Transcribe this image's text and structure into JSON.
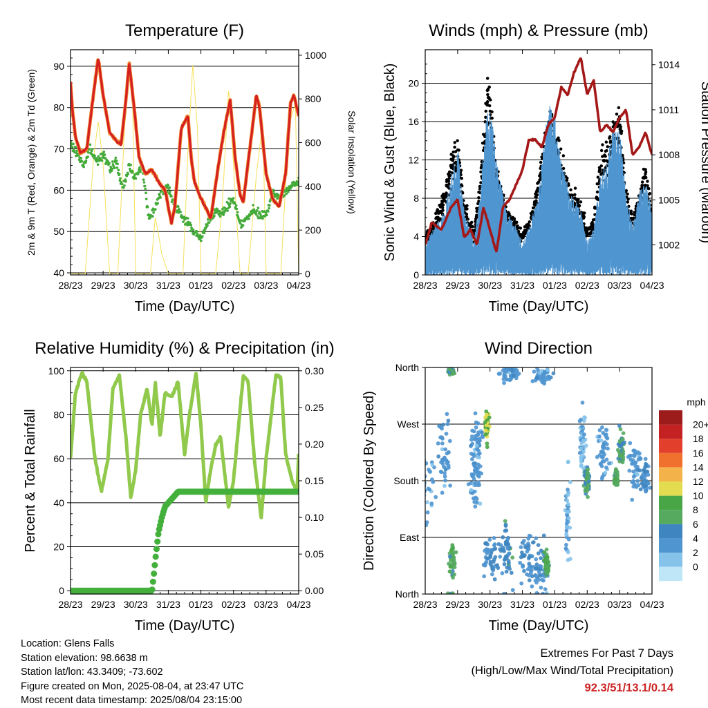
{
  "colors": {
    "temp": "#d42020",
    "temp9m": "#f08a30",
    "dew": "#44aa3a",
    "solar": "#f6e05a",
    "wind": "#4f95d0",
    "gust": "#000000",
    "pressure": "#a41818",
    "rh": "#90c94c",
    "rain": "#44b03c",
    "extreme": "#cc2222"
  },
  "common_x_ticks": [
    "28/23",
    "29/23",
    "30/23",
    "31/23",
    "01/23",
    "02/23",
    "03/23",
    "04/23"
  ],
  "chart_data": [
    {
      "id": "temperature",
      "type": "line",
      "title": "Temperature (F)",
      "xlabel": "Time (Day/UTC)",
      "ylabel": "2m & 9m T (Red, Orange) & 2m Td (Green)",
      "y2label": "Solar Insolation (Yellow)",
      "ylim": [
        39.5,
        94
      ],
      "yticks": [
        40,
        50,
        60,
        70,
        80,
        90
      ],
      "y2lim": [
        -5,
        1025
      ],
      "y2ticks": [
        0,
        200,
        400,
        600,
        800,
        1000
      ],
      "xlim": [
        0,
        7
      ],
      "grid": "horizontal",
      "series": [
        {
          "key": "t2m",
          "x": [
            0,
            0.05,
            0.15,
            0.3,
            0.5,
            0.7,
            0.85,
            1.0,
            1.2,
            1.4,
            1.55,
            1.7,
            1.8,
            1.95,
            2.1,
            2.3,
            2.5,
            2.7,
            2.9,
            3.1,
            3.2,
            3.4,
            3.6,
            3.7,
            3.8,
            4.0,
            4.2,
            4.3,
            4.5,
            4.7,
            4.9,
            5.05,
            5.2,
            5.3,
            5.5,
            5.7,
            5.8,
            6.0,
            6.2,
            6.4,
            6.6,
            6.75,
            6.85,
            7.0
          ],
          "y": [
            86,
            80,
            73,
            69,
            70,
            83,
            92,
            83,
            74,
            72,
            71,
            82,
            91,
            80,
            68,
            64,
            65,
            62,
            60,
            52,
            56,
            75,
            78,
            68,
            62,
            58,
            55,
            53,
            64,
            74,
            82,
            68,
            59,
            57,
            70,
            83,
            80,
            64,
            58,
            56,
            64,
            81,
            83,
            78
          ]
        },
        {
          "key": "dewpoint",
          "x": [
            0,
            0.2,
            0.4,
            0.6,
            0.8,
            1.0,
            1.2,
            1.4,
            1.6,
            1.8,
            2.0,
            2.2,
            2.4,
            2.6,
            2.8,
            3.0,
            3.2,
            3.4,
            3.6,
            3.8,
            4.0,
            4.2,
            4.4,
            4.6,
            4.8,
            5.0,
            5.2,
            5.4,
            5.6,
            5.8,
            6.0,
            6.2,
            6.4,
            6.6,
            6.8,
            7.0
          ],
          "y": [
            71,
            69,
            66,
            70,
            67,
            69,
            65,
            67,
            60,
            66,
            63,
            66,
            53,
            56,
            60,
            61,
            56,
            54,
            52,
            50,
            48,
            52,
            55,
            54,
            56,
            58,
            52,
            53,
            55,
            54,
            54,
            59,
            58,
            60,
            61,
            62
          ]
        },
        {
          "key": "solar",
          "x": [
            0.0,
            0.2,
            0.45,
            0.7,
            0.85,
            1.0,
            1.2,
            1.45,
            1.65,
            1.8,
            1.9,
            2.0,
            2.2,
            2.45,
            2.6,
            2.7,
            2.8,
            3.0,
            3.2,
            3.45,
            3.6,
            3.75,
            3.9,
            4.0,
            4.2,
            4.45,
            4.65,
            4.85,
            5.0,
            5.2,
            5.45,
            5.7,
            5.9,
            6.0,
            6.2,
            6.45,
            6.7,
            6.9,
            7.0
          ],
          "y": [
            0,
            0,
            0,
            520,
            700,
            500,
            0,
            0,
            650,
            950,
            820,
            0,
            0,
            0,
            260,
            180,
            90,
            0,
            0,
            0,
            550,
            960,
            650,
            0,
            0,
            0,
            300,
            850,
            500,
            0,
            0,
            450,
            700,
            0,
            0,
            0,
            680,
            780,
            0
          ]
        }
      ]
    },
    {
      "id": "winds",
      "type": "scatter",
      "title": "Winds (mph) & Pressure (mb)",
      "xlabel": "Time (Day/UTC)",
      "ylabel": "Sonic Wind & Gust (Blue, Black)",
      "y2label": "Station Pressure (Maroon)",
      "ylim": [
        0,
        23.5
      ],
      "yticks": [
        0,
        4,
        8,
        12,
        16,
        20
      ],
      "y2lim": [
        1000.0,
        1015.0
      ],
      "y2ticks": [
        1002,
        1005,
        1008,
        1011,
        1014
      ],
      "xlim": [
        0,
        7
      ],
      "grid": "horizontal",
      "series": [
        {
          "key": "wind_mean",
          "x": [
            0,
            0.3,
            0.6,
            0.8,
            1.0,
            1.2,
            1.5,
            1.7,
            1.85,
            2.0,
            2.2,
            2.5,
            2.8,
            3.0,
            3.2,
            3.5,
            3.7,
            3.85,
            4.0,
            4.2,
            4.5,
            4.8,
            5.0,
            5.2,
            5.4,
            5.6,
            5.8,
            6.0,
            6.2,
            6.4,
            6.6,
            6.8,
            7.0
          ],
          "y": [
            2,
            3,
            4,
            6,
            8,
            4,
            2,
            5,
            9,
            11,
            7,
            4,
            3,
            2,
            3,
            5,
            9,
            11,
            10,
            7,
            5,
            4,
            2,
            3,
            6,
            7,
            9,
            9,
            5,
            3,
            5,
            6,
            4
          ]
        },
        {
          "key": "gust",
          "x": [
            0,
            0.3,
            0.6,
            0.8,
            1.0,
            1.2,
            1.5,
            1.7,
            1.85,
            1.95,
            2.2,
            2.5,
            2.8,
            3.0,
            3.2,
            3.5,
            3.7,
            3.85,
            4.0,
            4.2,
            4.5,
            4.8,
            5.0,
            5.2,
            5.4,
            5.6,
            5.8,
            6.0,
            6.15,
            6.4,
            6.6,
            6.8,
            7.0
          ],
          "y": [
            4,
            5,
            8,
            11,
            13,
            7,
            4,
            9,
            16,
            19,
            10,
            6,
            5,
            4,
            5,
            9,
            13,
            15,
            13,
            11,
            8,
            7,
            4,
            5,
            11,
            12,
            14,
            16,
            9,
            5,
            8,
            10,
            6
          ]
        },
        {
          "key": "pressure",
          "x": [
            0,
            0.2,
            0.5,
            0.8,
            1.0,
            1.2,
            1.4,
            1.6,
            1.8,
            2.0,
            2.2,
            2.4,
            2.6,
            2.8,
            3.0,
            3.2,
            3.4,
            3.6,
            3.8,
            4.0,
            4.2,
            4.4,
            4.6,
            4.8,
            5.0,
            5.2,
            5.4,
            5.6,
            5.8,
            6.0,
            6.2,
            6.4,
            6.6,
            6.8,
            7.0
          ],
          "y": [
            1002.0,
            1003.5,
            1003.0,
            1004.5,
            1005.0,
            1002.5,
            1003.0,
            1002.0,
            1004.5,
            1003.0,
            1001.5,
            1004.5,
            1005.0,
            1006.0,
            1007.0,
            1009.0,
            1009.0,
            1008.5,
            1010.0,
            1010.5,
            1012.5,
            1012.0,
            1013.5,
            1014.5,
            1012.0,
            1013.0,
            1009.5,
            1010.0,
            1009.5,
            1010.5,
            1011.0,
            1008.0,
            1008.5,
            1009.5,
            1008.0
          ]
        }
      ]
    },
    {
      "id": "humidity",
      "type": "line",
      "title": "Relative Humidity (%) & Precipitation (in)",
      "xlabel": "Time (Day/UTC)",
      "ylabel": "Percent & Total Rainfall",
      "ylim": [
        -1.5,
        101.5
      ],
      "yticks": [
        0,
        20,
        40,
        60,
        80,
        100
      ],
      "y2lim": [
        -0.0045,
        0.3045
      ],
      "y2ticks": [
        "0.00",
        "0.05",
        "0.10",
        "0.15",
        "0.20",
        "0.25",
        "0.30"
      ],
      "xlim": [
        0,
        7
      ],
      "grid": "horizontal",
      "series": [
        {
          "key": "rh",
          "x": [
            0,
            0.15,
            0.35,
            0.5,
            0.75,
            0.95,
            1.15,
            1.3,
            1.5,
            1.7,
            1.85,
            2.0,
            2.15,
            2.35,
            2.5,
            2.6,
            2.75,
            2.9,
            3.1,
            3.3,
            3.5,
            3.65,
            3.85,
            4.0,
            4.15,
            4.3,
            4.45,
            4.6,
            4.85,
            5.0,
            5.3,
            5.45,
            5.65,
            5.85,
            6.0,
            6.3,
            6.45,
            6.6,
            6.8,
            6.95,
            7.0
          ],
          "y": [
            60,
            90,
            99,
            95,
            60,
            45,
            60,
            92,
            98,
            70,
            42,
            55,
            80,
            92,
            75,
            95,
            70,
            90,
            88,
            95,
            62,
            80,
            99,
            75,
            40,
            55,
            66,
            70,
            38,
            50,
            98,
            95,
            58,
            33,
            60,
            98,
            97,
            62,
            50,
            45,
            62
          ]
        },
        {
          "key": "rain",
          "x": [
            0,
            1.0,
            2.0,
            2.5,
            2.55,
            2.62,
            2.7,
            2.8,
            2.9,
            3.0,
            3.1,
            3.3,
            4.0,
            5.0,
            6.0,
            7.0
          ],
          "y": [
            0,
            0,
            0,
            0,
            0.02,
            0.05,
            0.08,
            0.1,
            0.115,
            0.12,
            0.125,
            0.135,
            0.135,
            0.135,
            0.135,
            0.135
          ]
        }
      ]
    },
    {
      "id": "direction",
      "type": "scatter",
      "title": "Wind Direction",
      "xlabel": "Time (Day/UTC)",
      "ylabel": "Direction (Colored By Speed)",
      "ylim": [
        0,
        360
      ],
      "yticks": [
        "North",
        "East",
        "South",
        "West",
        "North"
      ],
      "xlim": [
        0,
        7
      ],
      "grid": "horizontal",
      "colorbar": {
        "units": "mph",
        "labels": [
          "0",
          "2",
          "4",
          "6",
          "8",
          "10",
          "12",
          "14",
          "16",
          "18",
          "20+"
        ],
        "colors": [
          "#bfe6f6",
          "#86c3ea",
          "#4f95d0",
          "#3f86c0",
          "#56aa60",
          "#48a646",
          "#e4dc50",
          "#f4b24a",
          "#f0702e",
          "#e2402c",
          "#c42222",
          "#9c1c1c"
        ]
      },
      "clusters": [
        {
          "x": 0.85,
          "y": 55,
          "spread": [
            0.15,
            40
          ],
          "speed": 7
        },
        {
          "x": 0.8,
          "y": 355,
          "spread": [
            0.15,
            10
          ],
          "speed": 6
        },
        {
          "x": 0.0,
          "y": 180,
          "spread": [
            0.45,
            100
          ],
          "speed": 2
        },
        {
          "x": 0.6,
          "y": 230,
          "spread": [
            0.3,
            90
          ],
          "speed": 3
        },
        {
          "x": 1.6,
          "y": 240,
          "spread": [
            0.35,
            60
          ],
          "speed": 3
        },
        {
          "x": 1.9,
          "y": 265,
          "spread": [
            0.1,
            40
          ],
          "speed": 10
        },
        {
          "x": 1.55,
          "y": 180,
          "spread": [
            0.25,
            60
          ],
          "speed": 3
        },
        {
          "x": 2.05,
          "y": 60,
          "spread": [
            0.4,
            50
          ],
          "speed": 4
        },
        {
          "x": 2.5,
          "y": 70,
          "spread": [
            0.25,
            50
          ],
          "speed": 5
        },
        {
          "x": 3.15,
          "y": 55,
          "spread": [
            0.35,
            55
          ],
          "speed": 4
        },
        {
          "x": 3.6,
          "y": 50,
          "spread": [
            0.35,
            60
          ],
          "speed": 4
        },
        {
          "x": 3.75,
          "y": 45,
          "spread": [
            0.1,
            35
          ],
          "speed": 8
        },
        {
          "x": 3.6,
          "y": 345,
          "spread": [
            0.4,
            25
          ],
          "speed": 3
        },
        {
          "x": 2.6,
          "y": 350,
          "spread": [
            0.5,
            20
          ],
          "speed": 3
        },
        {
          "x": 4.4,
          "y": 120,
          "spread": [
            0.1,
            110
          ],
          "speed": 2
        },
        {
          "x": 4.85,
          "y": 240,
          "spread": [
            0.15,
            80
          ],
          "speed": 2
        },
        {
          "x": 5.0,
          "y": 180,
          "spread": [
            0.12,
            30
          ],
          "speed": 6
        },
        {
          "x": 5.5,
          "y": 225,
          "spread": [
            0.3,
            70
          ],
          "speed": 3
        },
        {
          "x": 5.9,
          "y": 185,
          "spread": [
            0.1,
            20
          ],
          "speed": 7
        },
        {
          "x": 6.05,
          "y": 230,
          "spread": [
            0.12,
            45
          ],
          "speed": 6
        },
        {
          "x": 6.5,
          "y": 200,
          "spread": [
            0.3,
            70
          ],
          "speed": 3
        },
        {
          "x": 6.8,
          "y": 185,
          "spread": [
            0.2,
            40
          ],
          "speed": 4
        }
      ]
    }
  ],
  "info": {
    "location": "Location: Glens Falls",
    "elevation": "Station elevation: 98.6638 m",
    "latlon": "Station lat/lon: 43.3409; -73.602",
    "created": "Figure created on Mon, 2025-08-04, at 23:47 UTC",
    "recent": "Most recent data timestamp: 2025/08/04 23:15:00"
  },
  "extremes": {
    "title": "Extremes For Past 7 Days",
    "subtitle": "(High/Low/Max Wind/Total Precipitation)",
    "value": "92.3/51/13.1/0.14"
  }
}
